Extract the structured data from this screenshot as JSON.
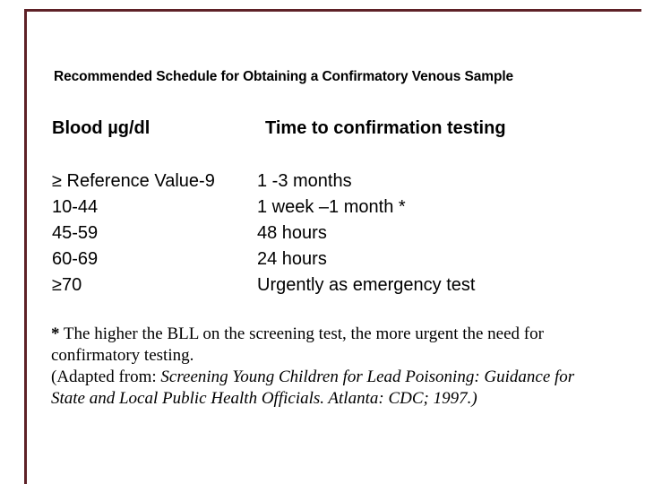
{
  "slide": {
    "accent_color": "#5e2127",
    "title": "Recommended Schedule for Obtaining a Confirmatory Venous Sample",
    "table": {
      "col1_header": "Blood µg/dl",
      "col2_header": "Time to confirmation testing",
      "rows": [
        {
          "level": "≥ Reference Value-9",
          "time": "1 -3 months"
        },
        {
          "level": "10-44",
          "time": "1 week –1 month *"
        },
        {
          "level": "45-59",
          "time": "48 hours"
        },
        {
          "level": "60-69",
          "time": "24 hours"
        },
        {
          "level": "≥70",
          "time": "Urgently as emergency test"
        }
      ]
    },
    "footnote": {
      "lines": [
        {
          "marker": "*",
          "text": " The higher the BLL on the screening test, the more urgent the need for"
        },
        {
          "text": "confirmatory testing."
        },
        {
          "prefix": "(Adapted from: ",
          "italic": "Screening Young Children for Lead Poisoning: Guidance for"
        },
        {
          "italic": "State and Local Public Health Officials. Atlanta: CDC; 1997.)"
        }
      ]
    }
  }
}
